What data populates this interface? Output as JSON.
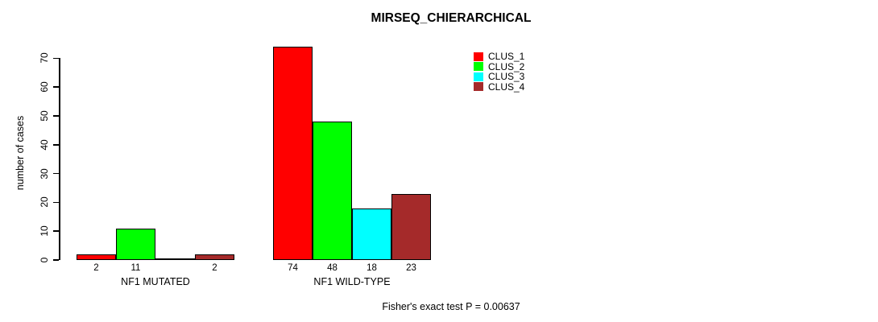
{
  "title": "MIRSEQ_CHIERARCHICAL",
  "chart_data": {
    "type": "bar",
    "title": "MIRSEQ_CHIERARCHICAL",
    "ylabel": "number of cases",
    "xlabel": "",
    "ylim": [
      0,
      70
    ],
    "yticks": [
      0,
      10,
      20,
      30,
      40,
      50,
      60,
      70
    ],
    "categories": [
      "NF1 MUTATED",
      "NF1 WILD-TYPE"
    ],
    "series": [
      {
        "name": "CLUS_1",
        "color": "#FF0000",
        "values": [
          2,
          74
        ]
      },
      {
        "name": "CLUS_2",
        "color": "#00FF00",
        "values": [
          11,
          48
        ]
      },
      {
        "name": "CLUS_3",
        "color": "#00FFFF",
        "values": [
          0,
          18
        ]
      },
      {
        "name": "CLUS_4",
        "color": "#A52A2A",
        "values": [
          2,
          23
        ]
      }
    ],
    "bar_labels": [
      [
        "2",
        "11",
        "",
        "2"
      ],
      [
        "74",
        "48",
        "18",
        "23"
      ]
    ],
    "legend_position": "top-right",
    "grid": false,
    "annotation": "Fisher's exact test P = 0.00637",
    "axis_color": "#000000",
    "bar_border_color": "#000000"
  }
}
